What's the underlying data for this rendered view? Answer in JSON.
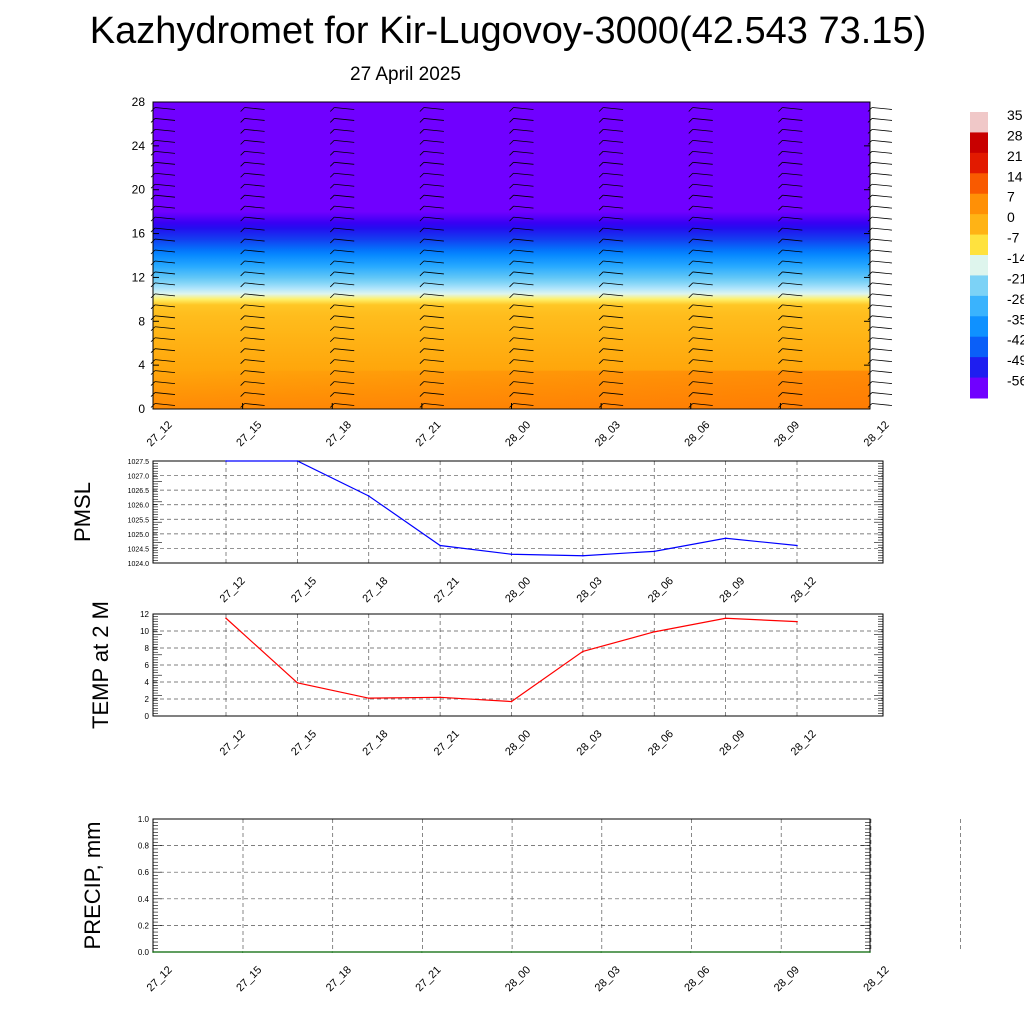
{
  "header": {
    "title": "Kazhydromet for Kir-Lugovoy-3000(42.543 73.15)",
    "subtitle": "27 April 2025"
  },
  "colorbar": {
    "labels": [
      "35",
      "28",
      "21",
      "14",
      "7",
      "0",
      "-7",
      "-14",
      "-21",
      "-28",
      "-35",
      "-42",
      "-49",
      "-56"
    ]
  },
  "chart_data": [
    {
      "type": "heatmap",
      "title": "",
      "x": [
        "27_12",
        "27_15",
        "27_18",
        "27_21",
        "28_00",
        "28_03",
        "28_06",
        "28_09",
        "28_12"
      ],
      "yticks": [
        0,
        4,
        8,
        12,
        16,
        20,
        24,
        28
      ],
      "ylim": [
        0,
        28
      ],
      "colorscale_range": [
        -56,
        35
      ],
      "profile": [
        {
          "h": 0,
          "t": 8
        },
        {
          "h": 5,
          "t": 2
        },
        {
          "h": 9.5,
          "t": -4
        },
        {
          "h": 10.5,
          "t": -14
        },
        {
          "h": 13,
          "t": -30
        },
        {
          "h": 15.5,
          "t": -46
        },
        {
          "h": 17,
          "t": -53
        },
        {
          "h": 18,
          "t": -56
        },
        {
          "h": 28,
          "t": -56
        }
      ],
      "wind_barbs": true
    },
    {
      "type": "line",
      "ylabel": "PMSL",
      "x": [
        "27_12",
        "27_15",
        "27_18",
        "27_21",
        "28_00",
        "28_03",
        "28_06",
        "28_09",
        "28_12"
      ],
      "values": [
        1027.5,
        1027.5,
        1026.3,
        1024.6,
        1024.3,
        1024.25,
        1024.4,
        1024.85,
        1024.6
      ],
      "yticks": [
        "1024.0",
        "1024.5",
        "1025.0",
        "1025.5",
        "1026.0",
        "1026.5",
        "1027.0",
        "1027.5"
      ],
      "ylim": [
        1024.0,
        1027.5
      ],
      "color": "#0000ff",
      "grid": true
    },
    {
      "type": "line",
      "ylabel": "TEMP at 2 M",
      "x": [
        "27_12",
        "27_15",
        "27_18",
        "27_21",
        "28_00",
        "28_03",
        "28_06",
        "28_09",
        "28_12"
      ],
      "values": [
        11.5,
        3.9,
        2.1,
        2.2,
        1.7,
        7.6,
        9.9,
        11.5,
        11.1
      ],
      "yticks": [
        "0",
        "2",
        "4",
        "6",
        "8",
        "10",
        "12"
      ],
      "ylim": [
        0,
        12
      ],
      "color": "#ff0000",
      "grid": true
    },
    {
      "type": "line",
      "ylabel": "PRECIP, mm",
      "x": [
        "27_12",
        "27_15",
        "27_18",
        "27_21",
        "28_00",
        "28_03",
        "28_06",
        "28_09",
        "28_12"
      ],
      "values": [
        0,
        0,
        0,
        0,
        0,
        0,
        0,
        0,
        0
      ],
      "yticks": [
        "0.0",
        "0.2",
        "0.4",
        "0.6",
        "0.8",
        "1.0"
      ],
      "ylim": [
        0,
        1.0
      ],
      "color": "#006400",
      "grid": true
    }
  ]
}
